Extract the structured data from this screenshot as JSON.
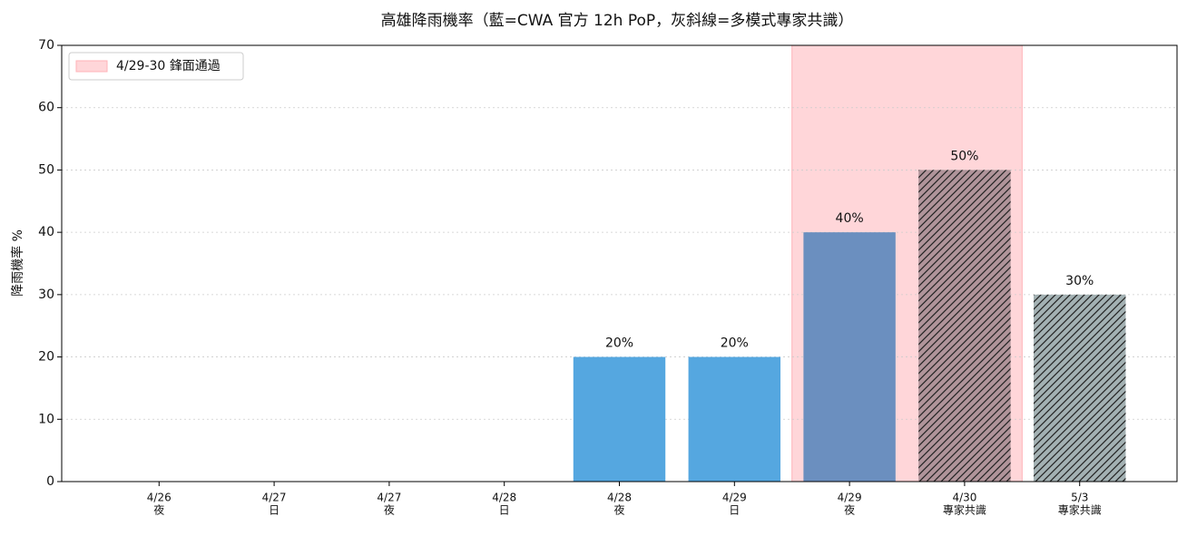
{
  "chart_data": {
    "type": "bar",
    "title": "高雄降雨機率（藍=CWA 官方 12h PoP，灰斜線=多模式專家共識）",
    "y_label": "降雨機率 %",
    "categories": [
      [
        "4/26",
        "夜"
      ],
      [
        "4/27",
        "日"
      ],
      [
        "4/27",
        "夜"
      ],
      [
        "4/28",
        "日"
      ],
      [
        "4/28",
        "夜"
      ],
      [
        "4/29",
        "日"
      ],
      [
        "4/29",
        "夜"
      ],
      [
        "4/30",
        "專家共識"
      ],
      [
        "5/3",
        "專家共識"
      ]
    ],
    "values": [
      null,
      null,
      null,
      null,
      20,
      20,
      40,
      50,
      30
    ],
    "value_labels": [
      null,
      null,
      null,
      null,
      "20%",
      "20%",
      "40%",
      "50%",
      "30%"
    ],
    "colors": [
      "#55a7e0",
      "#55a7e0",
      "#55a7e0",
      "#55a7e0",
      "#55a7e0",
      "#55a7e0",
      "#6b8fbf",
      "#b0949a",
      "#a3b1b3"
    ],
    "hatch": [
      false,
      false,
      false,
      false,
      false,
      false,
      false,
      true,
      true
    ],
    "span": {
      "start": 6,
      "end": 7,
      "label": "4/29-30 鋒面通過",
      "color": "#ffd6d9",
      "edge": "#ffb3b8"
    },
    "ylim": [
      0,
      70
    ],
    "yticks": [
      0,
      10,
      20,
      30,
      40,
      50,
      60,
      70
    ],
    "grid": true,
    "legend": "upper left"
  }
}
